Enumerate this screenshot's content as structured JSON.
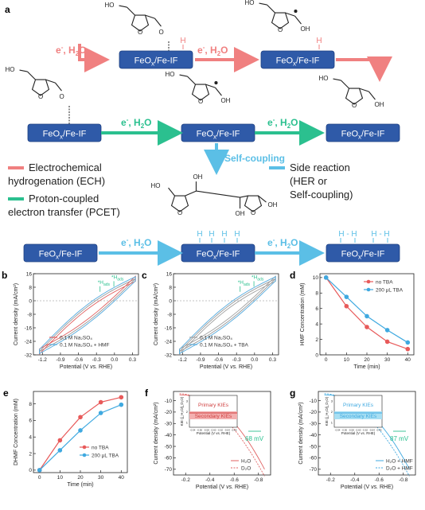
{
  "panel_labels": {
    "a": "a",
    "b": "b",
    "c": "c",
    "d": "d",
    "e": "e",
    "f": "f",
    "g": "g"
  },
  "scheme": {
    "box_label": "FeOx/Fe-IF",
    "box_prefix": "FeO",
    "box_sub": "x",
    "box_suffix": "/Fe-IF",
    "e_label": "e",
    "e_sup": "-",
    "h2o_label": "H",
    "h2o_sub": "2",
    "h2o_suffix": "O",
    "h_atom": "H",
    "oh_label": "OH",
    "ho_label": "HO",
    "o_label": "O",
    "self_coupling": "Self-coupling",
    "legend": {
      "ech": "Electrochemical hydrogenation (ECH)",
      "ech_line1": "Electrochemical",
      "ech_line2": "hydrogenation (ECH)",
      "pcet_line1": "Proton-coupled",
      "pcet_line2": "electron transfer (PCET)",
      "side_line1": "Side reaction",
      "side_line2": "(HER or",
      "side_line3": "Self-coupling)"
    },
    "h_pair": "H - H",
    "colors": {
      "ech": "#f08080",
      "pcet": "#2bc08f",
      "side": "#5bbfe6",
      "box": "#2f5aa8"
    }
  },
  "charts": {
    "b": {
      "type": "line",
      "xlabel": "Potential (V vs. RHE)",
      "ylabel": "Current density (mA/cm²)",
      "xticks": [
        -1.2,
        -0.9,
        -0.6,
        -0.3,
        0.0,
        0.3
      ],
      "yticks": [
        16,
        8,
        0,
        -8,
        -16,
        -24,
        -32
      ],
      "xlim": [
        -1.35,
        0.4
      ],
      "ylim": [
        -32,
        16
      ],
      "series": [
        {
          "name": "0.1 M Na₂SO₄",
          "color": "#e06060"
        },
        {
          "name": "0.1 M Na₂SO₄ + HMF",
          "color": "#55aadd"
        }
      ],
      "annotations": [
        "*H",
        "ads",
        "*H",
        "ads"
      ]
    },
    "c": {
      "type": "line",
      "xlabel": "Potential (V vs. RHE)",
      "ylabel": "Current density (mA/cm²)",
      "xticks": [
        -1.2,
        -0.9,
        -0.6,
        -0.3,
        0.0,
        0.3
      ],
      "yticks": [
        16,
        8,
        0,
        -8,
        -16,
        -24,
        -32
      ],
      "xlim": [
        -1.35,
        0.4
      ],
      "ylim": [
        -32,
        16
      ],
      "series": [
        {
          "name": "0.1 M Na₂SO₄",
          "color": "#a0a0a0"
        },
        {
          "name": "0.1 M Na₂SO₄ + TBA",
          "color": "#55aadd"
        }
      ],
      "annotations": [
        "*H",
        "ads",
        "*H",
        "ads"
      ]
    },
    "d": {
      "type": "line",
      "xlabel": "Time (min)",
      "ylabel": "HMF Concentration (mM)",
      "x": [
        0,
        10,
        20,
        30,
        40
      ],
      "xticks": [
        0,
        10,
        20,
        30,
        40
      ],
      "yticks": [
        0,
        2,
        4,
        6,
        8,
        10
      ],
      "xlim": [
        -3,
        43
      ],
      "ylim": [
        0,
        10.5
      ],
      "series": [
        {
          "name": "no TBA",
          "color": "#e85a5a",
          "values": [
            10,
            6.3,
            3.6,
            1.7,
            0.75
          ]
        },
        {
          "name": "200 μL TBA",
          "color": "#3fa9e0",
          "values": [
            10,
            7.5,
            5.0,
            3.2,
            1.6
          ]
        }
      ]
    },
    "e": {
      "type": "line",
      "xlabel": "Time (min)",
      "ylabel": "DHMF Concentration (mM)",
      "x": [
        0,
        10,
        20,
        30,
        40
      ],
      "xticks": [
        0,
        10,
        20,
        30,
        40
      ],
      "yticks": [
        0,
        2,
        4,
        6,
        8
      ],
      "xlim": [
        -3,
        43
      ],
      "ylim": [
        -0.3,
        9.5
      ],
      "series": [
        {
          "name": "no TBA",
          "color": "#e85a5a",
          "values": [
            0,
            3.6,
            6.4,
            8.2,
            8.8
          ]
        },
        {
          "name": "200 μL TBA",
          "color": "#3fa9e0",
          "values": [
            0,
            2.4,
            4.8,
            6.9,
            7.9
          ]
        }
      ]
    },
    "f": {
      "type": "line",
      "xlabel": "Potential (V vs. RHE)",
      "ylabel": "Current density (mA/cm²)",
      "xticks": [
        -0.2,
        -0.4,
        -0.6,
        -0.8
      ],
      "yticks": [
        -10,
        -20,
        -30,
        -40,
        -50,
        -60,
        -70
      ],
      "series": [
        {
          "name": "H₂O",
          "color": "#e06060"
        },
        {
          "name": "D₂O",
          "color": "#e06060"
        }
      ],
      "annotation": "68 mV",
      "inset": {
        "ylabel": "KIE (j_H₂O/j_D₂O)",
        "xlabel": "Potential (V vs. RHE)",
        "xticks": [
          -0.54,
          -0.56,
          -0.58,
          -0.6,
          -0.62,
          -0.64,
          -0.66
        ],
        "yticks": [
          1,
          2,
          3
        ],
        "primary": "Primary KIEs",
        "secondary": "Secondary KIEs"
      }
    },
    "g": {
      "type": "line",
      "xlabel": "Potential (V vs. RHE)",
      "ylabel": "Current density (mA/cm²)",
      "xticks": [
        -0.2,
        -0.4,
        -0.6,
        -0.8
      ],
      "yticks": [
        -10,
        -20,
        -30,
        -40,
        -50,
        -60,
        -70
      ],
      "series": [
        {
          "name": "H₂O + HMF",
          "color": "#3fa9e0"
        },
        {
          "name": "D₂O + HMF",
          "color": "#3fa9e0"
        }
      ],
      "annotation": "87 mV",
      "inset": {
        "ylabel": "KIE (j_H₂O/j_D₂O)",
        "xlabel": "Potential (V vs. RHE)",
        "xticks": [
          -0.54,
          -0.56,
          -0.58,
          -0.6,
          -0.62,
          -0.64,
          -0.66
        ],
        "yticks": [
          1,
          2,
          3
        ],
        "primary": "Primary KIEs",
        "secondary": "Secondary KIEs"
      }
    }
  },
  "chart_data": [
    {
      "panel": "d",
      "type": "line",
      "x": [
        0,
        10,
        20,
        30,
        40
      ],
      "series": [
        {
          "name": "no TBA",
          "values": [
            10,
            6.3,
            3.6,
            1.7,
            0.75
          ]
        },
        {
          "name": "200 μL TBA",
          "values": [
            10,
            7.5,
            5.0,
            3.2,
            1.6
          ]
        }
      ],
      "xlabel": "Time (min)",
      "ylabel": "HMF Concentration (mM)",
      "ylim": [
        0,
        10
      ]
    },
    {
      "panel": "e",
      "type": "line",
      "x": [
        0,
        10,
        20,
        30,
        40
      ],
      "series": [
        {
          "name": "no TBA",
          "values": [
            0,
            3.6,
            6.4,
            8.2,
            8.8
          ]
        },
        {
          "name": "200 μL TBA",
          "values": [
            0,
            2.4,
            4.8,
            6.9,
            7.9
          ]
        }
      ],
      "xlabel": "Time (min)",
      "ylabel": "DHMF Concentration (mM)",
      "ylim": [
        0,
        9
      ]
    }
  ]
}
